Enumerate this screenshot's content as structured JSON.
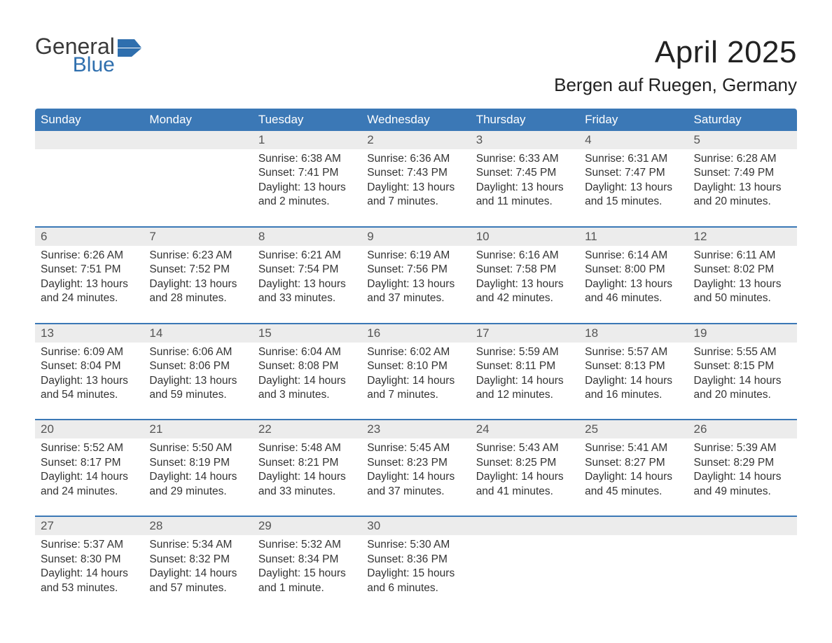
{
  "brand": {
    "word1": "General",
    "word2": "Blue",
    "icon_color": "#2f6fae"
  },
  "title": "April 2025",
  "location": "Bergen auf Ruegen, Germany",
  "colors": {
    "header_bg": "#3b78b6",
    "header_text": "#ffffff",
    "daynum_bg": "#ececec",
    "week_border": "#3b78b6",
    "text": "#333333",
    "page_bg": "#ffffff"
  },
  "typography": {
    "title_fontsize": 44,
    "location_fontsize": 26,
    "header_fontsize": 17,
    "body_fontsize": 15.5
  },
  "layout": {
    "columns": 7,
    "rows": 5
  },
  "weekdays": [
    "Sunday",
    "Monday",
    "Tuesday",
    "Wednesday",
    "Thursday",
    "Friday",
    "Saturday"
  ],
  "weeks": [
    [
      {
        "day": "",
        "sunrise": "",
        "sunset": "",
        "daylight": ""
      },
      {
        "day": "",
        "sunrise": "",
        "sunset": "",
        "daylight": ""
      },
      {
        "day": "1",
        "sunrise": "Sunrise: 6:38 AM",
        "sunset": "Sunset: 7:41 PM",
        "daylight": "Daylight: 13 hours and 2 minutes."
      },
      {
        "day": "2",
        "sunrise": "Sunrise: 6:36 AM",
        "sunset": "Sunset: 7:43 PM",
        "daylight": "Daylight: 13 hours and 7 minutes."
      },
      {
        "day": "3",
        "sunrise": "Sunrise: 6:33 AM",
        "sunset": "Sunset: 7:45 PM",
        "daylight": "Daylight: 13 hours and 11 minutes."
      },
      {
        "day": "4",
        "sunrise": "Sunrise: 6:31 AM",
        "sunset": "Sunset: 7:47 PM",
        "daylight": "Daylight: 13 hours and 15 minutes."
      },
      {
        "day": "5",
        "sunrise": "Sunrise: 6:28 AM",
        "sunset": "Sunset: 7:49 PM",
        "daylight": "Daylight: 13 hours and 20 minutes."
      }
    ],
    [
      {
        "day": "6",
        "sunrise": "Sunrise: 6:26 AM",
        "sunset": "Sunset: 7:51 PM",
        "daylight": "Daylight: 13 hours and 24 minutes."
      },
      {
        "day": "7",
        "sunrise": "Sunrise: 6:23 AM",
        "sunset": "Sunset: 7:52 PM",
        "daylight": "Daylight: 13 hours and 28 minutes."
      },
      {
        "day": "8",
        "sunrise": "Sunrise: 6:21 AM",
        "sunset": "Sunset: 7:54 PM",
        "daylight": "Daylight: 13 hours and 33 minutes."
      },
      {
        "day": "9",
        "sunrise": "Sunrise: 6:19 AM",
        "sunset": "Sunset: 7:56 PM",
        "daylight": "Daylight: 13 hours and 37 minutes."
      },
      {
        "day": "10",
        "sunrise": "Sunrise: 6:16 AM",
        "sunset": "Sunset: 7:58 PM",
        "daylight": "Daylight: 13 hours and 42 minutes."
      },
      {
        "day": "11",
        "sunrise": "Sunrise: 6:14 AM",
        "sunset": "Sunset: 8:00 PM",
        "daylight": "Daylight: 13 hours and 46 minutes."
      },
      {
        "day": "12",
        "sunrise": "Sunrise: 6:11 AM",
        "sunset": "Sunset: 8:02 PM",
        "daylight": "Daylight: 13 hours and 50 minutes."
      }
    ],
    [
      {
        "day": "13",
        "sunrise": "Sunrise: 6:09 AM",
        "sunset": "Sunset: 8:04 PM",
        "daylight": "Daylight: 13 hours and 54 minutes."
      },
      {
        "day": "14",
        "sunrise": "Sunrise: 6:06 AM",
        "sunset": "Sunset: 8:06 PM",
        "daylight": "Daylight: 13 hours and 59 minutes."
      },
      {
        "day": "15",
        "sunrise": "Sunrise: 6:04 AM",
        "sunset": "Sunset: 8:08 PM",
        "daylight": "Daylight: 14 hours and 3 minutes."
      },
      {
        "day": "16",
        "sunrise": "Sunrise: 6:02 AM",
        "sunset": "Sunset: 8:10 PM",
        "daylight": "Daylight: 14 hours and 7 minutes."
      },
      {
        "day": "17",
        "sunrise": "Sunrise: 5:59 AM",
        "sunset": "Sunset: 8:11 PM",
        "daylight": "Daylight: 14 hours and 12 minutes."
      },
      {
        "day": "18",
        "sunrise": "Sunrise: 5:57 AM",
        "sunset": "Sunset: 8:13 PM",
        "daylight": "Daylight: 14 hours and 16 minutes."
      },
      {
        "day": "19",
        "sunrise": "Sunrise: 5:55 AM",
        "sunset": "Sunset: 8:15 PM",
        "daylight": "Daylight: 14 hours and 20 minutes."
      }
    ],
    [
      {
        "day": "20",
        "sunrise": "Sunrise: 5:52 AM",
        "sunset": "Sunset: 8:17 PM",
        "daylight": "Daylight: 14 hours and 24 minutes."
      },
      {
        "day": "21",
        "sunrise": "Sunrise: 5:50 AM",
        "sunset": "Sunset: 8:19 PM",
        "daylight": "Daylight: 14 hours and 29 minutes."
      },
      {
        "day": "22",
        "sunrise": "Sunrise: 5:48 AM",
        "sunset": "Sunset: 8:21 PM",
        "daylight": "Daylight: 14 hours and 33 minutes."
      },
      {
        "day": "23",
        "sunrise": "Sunrise: 5:45 AM",
        "sunset": "Sunset: 8:23 PM",
        "daylight": "Daylight: 14 hours and 37 minutes."
      },
      {
        "day": "24",
        "sunrise": "Sunrise: 5:43 AM",
        "sunset": "Sunset: 8:25 PM",
        "daylight": "Daylight: 14 hours and 41 minutes."
      },
      {
        "day": "25",
        "sunrise": "Sunrise: 5:41 AM",
        "sunset": "Sunset: 8:27 PM",
        "daylight": "Daylight: 14 hours and 45 minutes."
      },
      {
        "day": "26",
        "sunrise": "Sunrise: 5:39 AM",
        "sunset": "Sunset: 8:29 PM",
        "daylight": "Daylight: 14 hours and 49 minutes."
      }
    ],
    [
      {
        "day": "27",
        "sunrise": "Sunrise: 5:37 AM",
        "sunset": "Sunset: 8:30 PM",
        "daylight": "Daylight: 14 hours and 53 minutes."
      },
      {
        "day": "28",
        "sunrise": "Sunrise: 5:34 AM",
        "sunset": "Sunset: 8:32 PM",
        "daylight": "Daylight: 14 hours and 57 minutes."
      },
      {
        "day": "29",
        "sunrise": "Sunrise: 5:32 AM",
        "sunset": "Sunset: 8:34 PM",
        "daylight": "Daylight: 15 hours and 1 minute."
      },
      {
        "day": "30",
        "sunrise": "Sunrise: 5:30 AM",
        "sunset": "Sunset: 8:36 PM",
        "daylight": "Daylight: 15 hours and 6 minutes."
      },
      {
        "day": "",
        "sunrise": "",
        "sunset": "",
        "daylight": ""
      },
      {
        "day": "",
        "sunrise": "",
        "sunset": "",
        "daylight": ""
      },
      {
        "day": "",
        "sunrise": "",
        "sunset": "",
        "daylight": ""
      }
    ]
  ]
}
